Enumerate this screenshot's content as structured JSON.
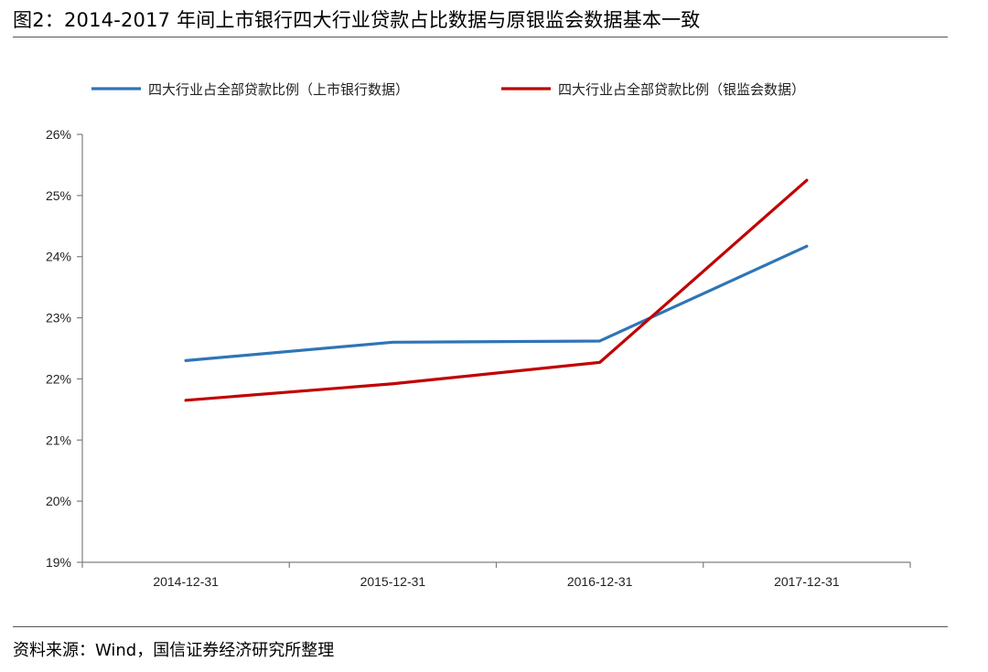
{
  "title": "图2：2014-2017 年间上市银行四大行业贷款占比数据与原银监会数据基本一致",
  "source": "资料来源：Wind，国信证券经济研究所整理",
  "chart_data": {
    "type": "line",
    "categories": [
      "2014-12-31",
      "2015-12-31",
      "2016-12-31",
      "2017-12-31"
    ],
    "y_tick_labels": [
      "19%",
      "20%",
      "21%",
      "22%",
      "23%",
      "24%",
      "25%",
      "26%"
    ],
    "ylim": [
      19,
      26
    ],
    "y_unit": "%",
    "grid": false,
    "legend_position": "top",
    "series": [
      {
        "name": "四大行业占全部贷款比例（上市银行数据）",
        "color": "#2e75b6",
        "values": [
          22.3,
          22.6,
          22.62,
          24.17
        ]
      },
      {
        "name": "四大行业占全部贷款比例（银监会数据）",
        "color": "#c00000",
        "values": [
          21.65,
          21.92,
          22.27,
          25.25
        ]
      }
    ]
  }
}
